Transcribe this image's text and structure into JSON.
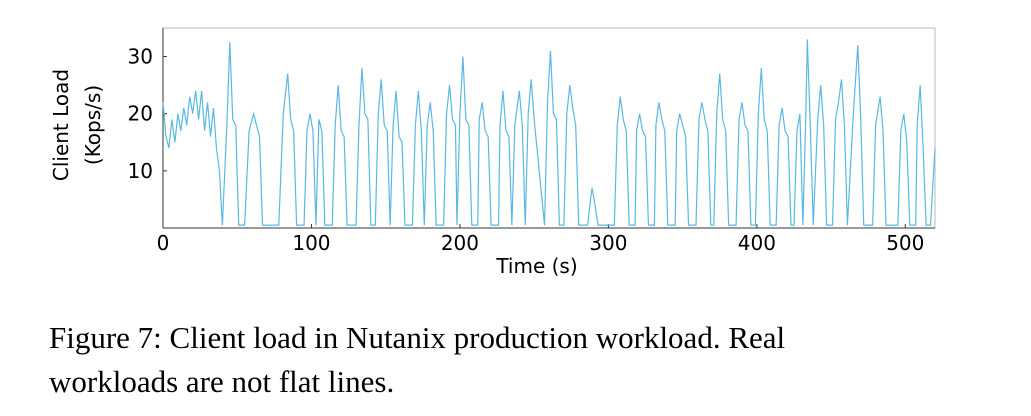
{
  "chart_data": {
    "type": "line",
    "ylabel": [
      "Client Load",
      "(Kops/s)"
    ],
    "xlabel": "Time (s)",
    "caption": [
      "Figure 7: Client load in Nutanix production workload. Real",
      "workloads are not flat lines."
    ],
    "color": "#5ab9e3",
    "xlim": [
      0,
      520
    ],
    "xticks": [
      0,
      100,
      200,
      300,
      400,
      500
    ],
    "ylim": [
      0,
      35
    ],
    "yticks": [
      10,
      20,
      30
    ],
    "x": [
      0,
      2,
      4,
      6,
      8,
      10,
      12,
      14,
      16,
      18,
      20,
      22,
      24,
      26,
      28,
      30,
      32,
      34,
      36,
      38,
      40,
      43,
      45,
      47,
      49,
      51,
      55,
      58,
      61,
      63,
      65,
      67,
      78,
      81,
      84,
      86,
      88,
      90,
      95,
      97,
      99,
      101,
      103,
      105,
      107,
      109,
      114,
      116,
      118,
      120,
      122,
      124,
      130,
      132,
      134,
      136,
      138,
      140,
      143,
      145,
      147,
      149,
      151,
      153,
      155,
      157,
      159,
      161,
      163,
      168,
      170,
      172,
      174,
      176,
      178,
      180,
      182,
      184,
      189,
      191,
      193,
      195,
      197,
      198,
      200,
      202,
      204,
      206,
      208,
      212,
      213,
      215,
      217,
      219,
      221,
      226,
      227,
      229,
      231,
      233,
      235,
      237,
      240,
      242,
      244,
      246,
      248,
      250,
      257,
      259,
      261,
      263,
      265,
      267,
      270,
      272,
      274,
      276,
      278,
      280,
      286,
      288,
      289,
      291,
      293,
      304,
      306,
      308,
      310,
      312,
      314,
      318,
      319,
      321,
      323,
      325,
      327,
      331,
      332,
      334,
      336,
      338,
      340,
      345,
      346,
      348,
      350,
      352,
      354,
      359,
      361,
      363,
      365,
      367,
      369,
      371,
      373,
      375,
      377,
      379,
      381,
      386,
      388,
      390,
      392,
      394,
      396,
      399,
      401,
      403,
      405,
      407,
      409,
      413,
      415,
      417,
      419,
      421,
      423,
      425,
      427,
      429,
      431,
      433,
      434,
      436,
      438,
      441,
      443,
      445,
      447,
      451,
      453,
      455,
      457,
      459,
      461,
      465,
      468,
      470,
      472,
      478,
      480,
      483,
      485,
      487,
      495,
      497,
      499,
      501,
      503,
      507,
      508,
      510,
      512,
      514,
      517,
      520
    ],
    "y": [
      22,
      16,
      14,
      19,
      15,
      20,
      17,
      21,
      18,
      23,
      20,
      24,
      19,
      24,
      17,
      22,
      16,
      21,
      14,
      10,
      0.5,
      18,
      32.5,
      19,
      18,
      0.5,
      0.5,
      17,
      20,
      18,
      16,
      0.5,
      0.5,
      20,
      27,
      19,
      17,
      0.5,
      0.5,
      17,
      20,
      17,
      0.5,
      19,
      17,
      0.5,
      0.5,
      18,
      25,
      17,
      16,
      0.5,
      0.5,
      18,
      28,
      20,
      19,
      0.5,
      0.5,
      20,
      26,
      18,
      17,
      0.5,
      18,
      24,
      16,
      15,
      0.5,
      0.5,
      18,
      24,
      17,
      0.5,
      18,
      22,
      17,
      0.5,
      0.5,
      20,
      25,
      19,
      18,
      0.5,
      20,
      30,
      19,
      18,
      0.5,
      0.5,
      19,
      22,
      17,
      16,
      0.5,
      0.5,
      18,
      24,
      17,
      16,
      0.5,
      18,
      24,
      18,
      0.5,
      20,
      26,
      19,
      0.5,
      22,
      31,
      20,
      19,
      0.5,
      0.5,
      20,
      25,
      21,
      18,
      0.5,
      0.5,
      5,
      7,
      4,
      0.5,
      0.5,
      18,
      23,
      19,
      17,
      0.5,
      0.5,
      17,
      20,
      17,
      16,
      0.5,
      0.5,
      18,
      22,
      19,
      17,
      0.5,
      0.5,
      17,
      20,
      18,
      16,
      0.5,
      0.5,
      19,
      22,
      19,
      17,
      0.5,
      0.5,
      20,
      27,
      19,
      17,
      0.5,
      0.5,
      19,
      22,
      18,
      17,
      0.5,
      0.5,
      20,
      28,
      19,
      17,
      0.5,
      0.5,
      18,
      21,
      17,
      16,
      0.5,
      0.5,
      17,
      20,
      0.5,
      20,
      33,
      18,
      0.5,
      19,
      25,
      18,
      0.5,
      0.5,
      19,
      22,
      26,
      18,
      0.5,
      20,
      32,
      19,
      0.5,
      0.5,
      18,
      23,
      17,
      0.5,
      0.5,
      17,
      20,
      15,
      0.5,
      0.5,
      18,
      25,
      14,
      0.5,
      0.5,
      14
    ]
  }
}
